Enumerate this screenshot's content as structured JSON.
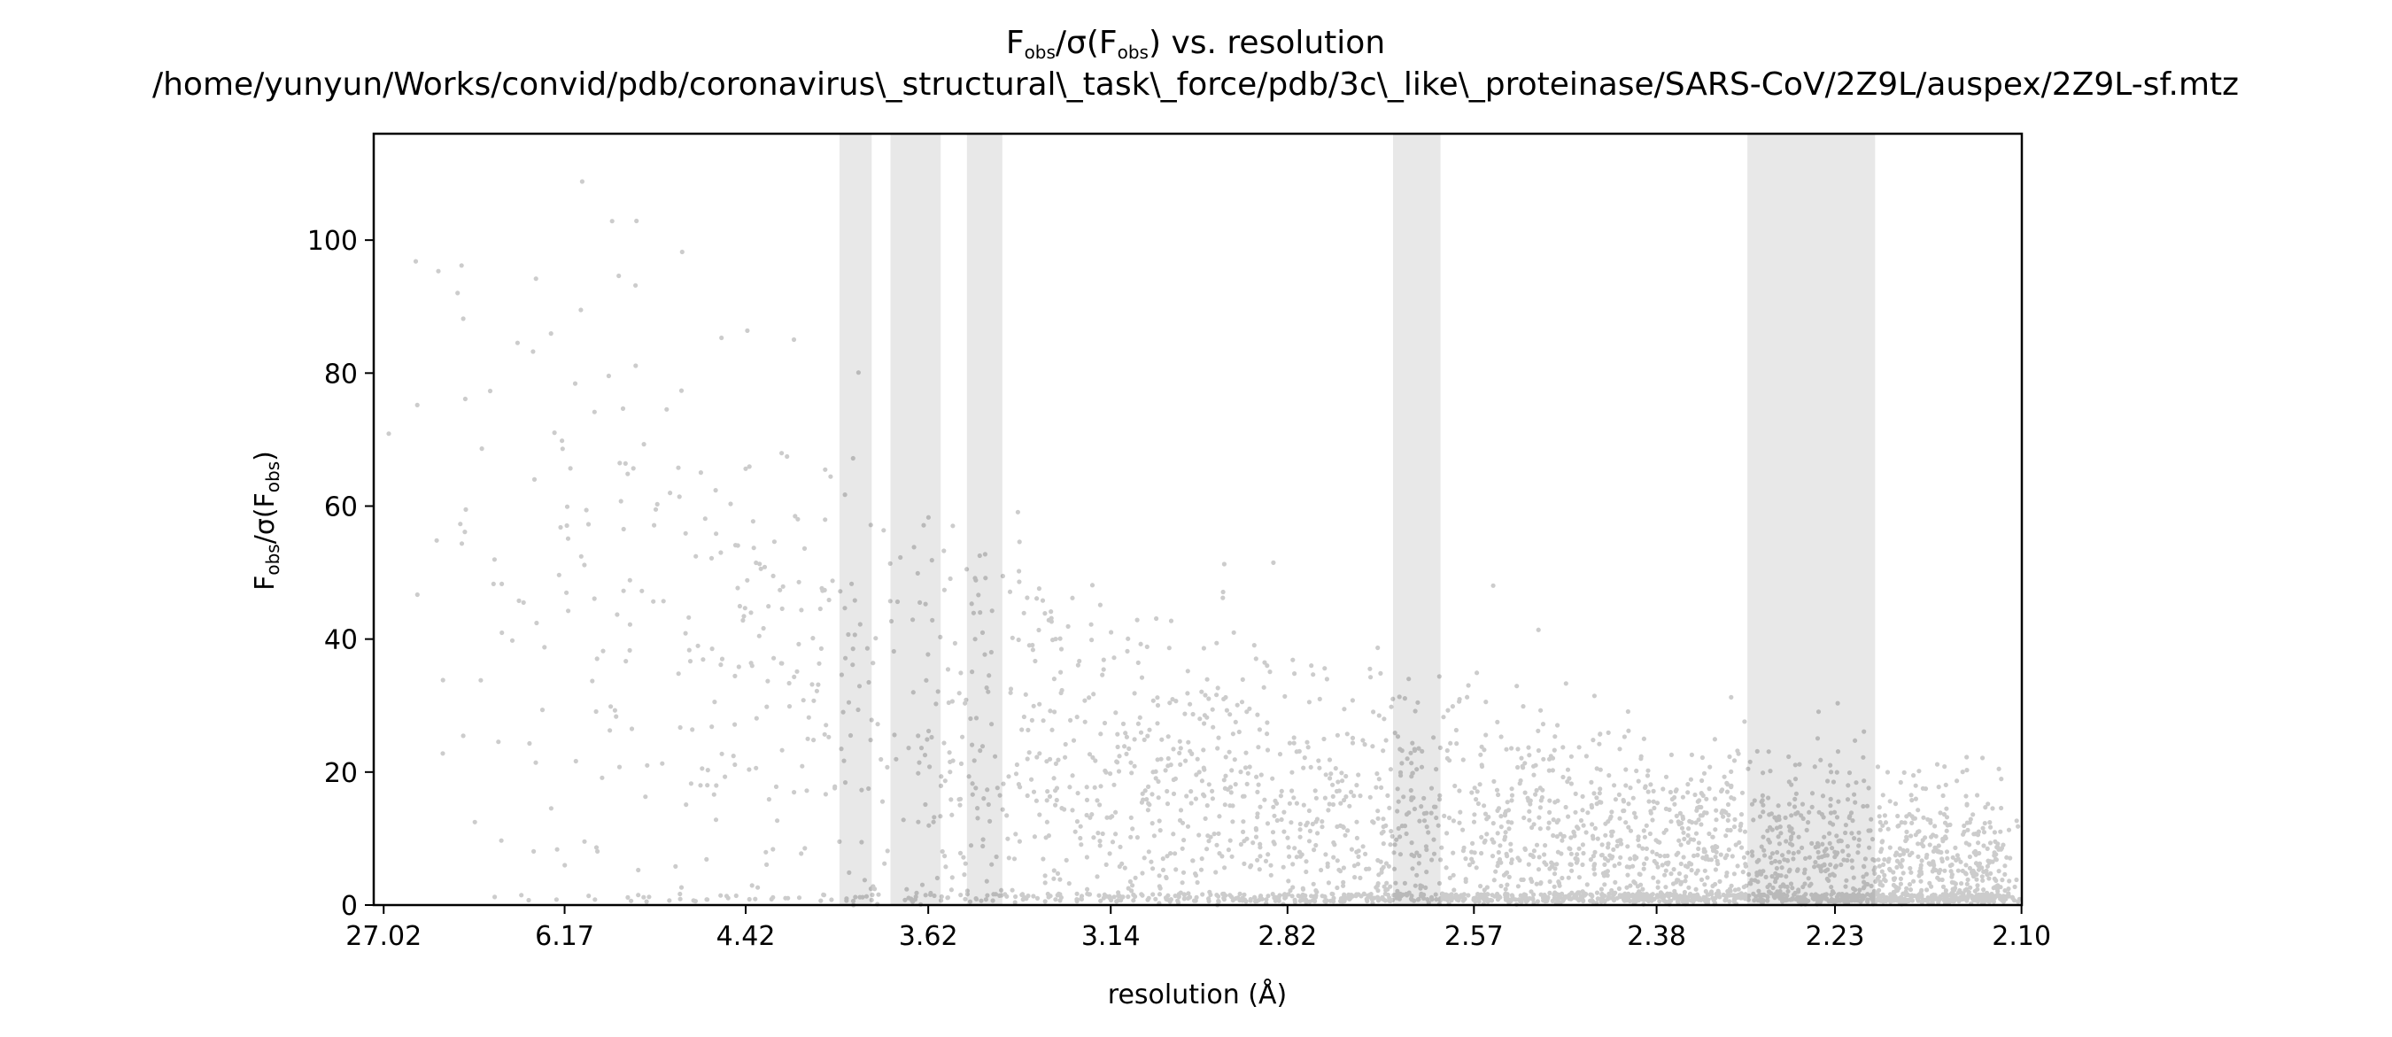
{
  "chart_data": {
    "type": "scatter",
    "title": {
      "line1": {
        "main": "F",
        "sub1": "obs",
        "mid": "/σ(F",
        "sub2": "obs",
        "end": ") vs. resolution"
      },
      "line2": "/home/yunyun/Works/convid/pdb/coronavirus\\_structural\\_task\\_force/pdb/3c\\_like\\_proteinase/SARS-CoV/2Z9L/auspex/2Z9L-sf.mtz"
    },
    "xlabel": "resolution (Å)",
    "ylabel": {
      "main": "F",
      "sub1": "obs",
      "mid": "/σ(F",
      "sub2": "obs",
      "end": ")"
    },
    "x_tick_labels": [
      "27.02",
      "6.17",
      "4.42",
      "3.62",
      "3.14",
      "2.82",
      "2.57",
      "2.38",
      "2.23",
      "2.10"
    ],
    "y_ticks": [
      0,
      20,
      40,
      60,
      80,
      100
    ],
    "ylim": [
      0,
      116
    ],
    "x_scale": "1/d^2 (resolution)",
    "x_range_inv_d2": [
      0.0,
      0.2268
    ],
    "shaded_resolution_ranges_A": [
      [
        3.95,
        3.82
      ],
      [
        3.75,
        3.58
      ],
      [
        3.5,
        3.4
      ],
      [
        2.67,
        2.61
      ],
      [
        2.3,
        2.2
      ]
    ],
    "point_color": "#000000",
    "point_alpha": 0.2,
    "shade_color": "#e8e8e8",
    "grid": false,
    "legend": "none"
  }
}
